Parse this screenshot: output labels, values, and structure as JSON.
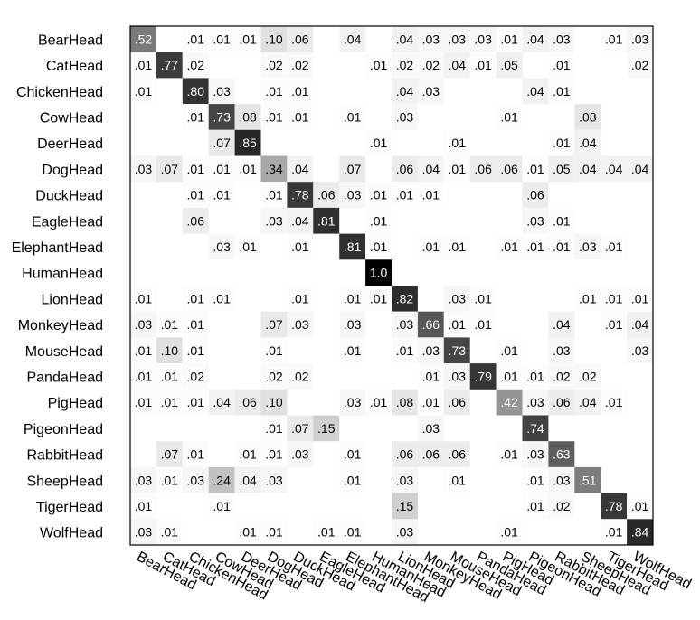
{
  "chart_data": {
    "type": "heatmap",
    "title": "",
    "xlabel": "",
    "ylabel": "",
    "row_labels": [
      "BearHead",
      "CatHead",
      "ChickenHead",
      "CowHead",
      "DeerHead",
      "DogHead",
      "DuckHead",
      "EagleHead",
      "ElephantHead",
      "HumanHead",
      "LionHead",
      "MonkeyHead",
      "MouseHead",
      "PandaHead",
      "PigHead",
      "PigeonHead",
      "RabbitHead",
      "SheepHead",
      "TigerHead",
      "WolfHead"
    ],
    "column_labels": [
      "BearHead",
      "CatHead",
      "ChickenHead",
      "CowHead",
      "DeerHead",
      "DogHead",
      "DuckHead",
      "EagleHead",
      "ElephantHead",
      "HumanHead",
      "LionHead",
      "MonkeyHead",
      "MouseHead",
      "PandaHead",
      "PigHead",
      "PigeonHead",
      "RabbitHead",
      "SheepHead",
      "TigerHead",
      "WolfHead"
    ],
    "cells": [
      [
        ".52",
        "",
        ".01",
        ".01",
        ".01",
        ".10",
        ".06",
        "",
        ".04",
        "",
        ".04",
        ".03",
        ".03",
        ".03",
        ".01",
        ".04",
        ".03",
        "",
        ".01",
        ".03"
      ],
      [
        ".01",
        ".77",
        ".02",
        "",
        "",
        ".02",
        ".02",
        "",
        "",
        ".01",
        ".02",
        ".02",
        ".04",
        ".01",
        ".05",
        "",
        ".01",
        "",
        "",
        ".02"
      ],
      [
        ".01",
        "",
        ".80",
        ".03",
        "",
        ".01",
        ".01",
        "",
        "",
        "",
        ".04",
        ".03",
        "",
        "",
        "",
        ".04",
        ".01",
        "",
        "",
        ""
      ],
      [
        "",
        "",
        ".01",
        ".73",
        ".08",
        ".01",
        ".01",
        "",
        ".01",
        "",
        ".03",
        "",
        "",
        "",
        ".01",
        "",
        "",
        ".08",
        "",
        ""
      ],
      [
        "",
        "",
        "",
        ".07",
        ".85",
        "",
        "",
        "",
        "",
        ".01",
        "",
        "",
        ".01",
        "",
        "",
        "",
        ".01",
        ".04",
        "",
        ""
      ],
      [
        ".03",
        ".07",
        ".01",
        ".01",
        ".01",
        ".34",
        ".04",
        "",
        ".07",
        "",
        ".06",
        ".04",
        ".01",
        ".06",
        ".06",
        ".01",
        ".05",
        ".04",
        ".04",
        ".04"
      ],
      [
        "",
        "",
        ".01",
        ".01",
        "",
        ".01",
        ".78",
        ".06",
        ".03",
        ".01",
        ".01",
        ".01",
        "",
        "",
        "",
        ".06",
        "",
        "",
        "",
        ""
      ],
      [
        "",
        "",
        ".06",
        "",
        "",
        ".03",
        ".04",
        ".81",
        "",
        ".01",
        "",
        "",
        "",
        "",
        "",
        ".03",
        ".01",
        "",
        "",
        ""
      ],
      [
        "",
        "",
        "",
        ".03",
        ".01",
        "",
        ".01",
        "",
        ".81",
        ".01",
        "",
        ".01",
        ".01",
        "",
        ".01",
        ".01",
        ".01",
        ".03",
        ".01",
        ""
      ],
      [
        "",
        "",
        "",
        "",
        "",
        "",
        "",
        "",
        "",
        "1.0",
        "",
        "",
        "",
        "",
        "",
        "",
        "",
        "",
        "",
        ""
      ],
      [
        ".01",
        "",
        ".01",
        ".01",
        "",
        "",
        ".01",
        "",
        ".01",
        ".01",
        ".82",
        "",
        ".03",
        ".01",
        "",
        "",
        "",
        ".01",
        ".01",
        ".01"
      ],
      [
        ".03",
        ".01",
        ".01",
        "",
        "",
        ".07",
        ".03",
        "",
        ".03",
        "",
        ".03",
        ".66",
        ".01",
        ".01",
        "",
        "",
        ".04",
        "",
        ".01",
        ".04"
      ],
      [
        ".01",
        ".10",
        ".01",
        "",
        "",
        ".01",
        "",
        "",
        ".01",
        "",
        ".01",
        ".03",
        ".73",
        "",
        ".01",
        "",
        ".03",
        "",
        "",
        ".03"
      ],
      [
        ".01",
        ".01",
        ".02",
        "",
        "",
        ".02",
        ".02",
        "",
        "",
        "",
        "",
        ".01",
        ".03",
        ".79",
        ".01",
        ".01",
        ".02",
        ".02",
        "",
        ""
      ],
      [
        ".01",
        ".01",
        ".01",
        ".04",
        ".06",
        ".10",
        "",
        "",
        ".03",
        ".01",
        ".08",
        ".01",
        ".06",
        "",
        ".42",
        ".03",
        ".06",
        ".04",
        ".01",
        ""
      ],
      [
        "",
        "",
        "",
        "",
        "",
        ".01",
        ".07",
        ".15",
        "",
        "",
        "",
        ".03",
        "",
        "",
        "",
        ".74",
        "",
        "",
        "",
        ""
      ],
      [
        "",
        ".07",
        ".01",
        "",
        ".01",
        ".01",
        ".03",
        "",
        ".01",
        "",
        ".06",
        ".06",
        ".06",
        "",
        ".01",
        ".03",
        ".63",
        "",
        "",
        ""
      ],
      [
        ".03",
        ".01",
        ".03",
        ".24",
        ".04",
        ".03",
        "",
        "",
        ".01",
        "",
        ".03",
        "",
        ".01",
        "",
        "",
        ".01",
        ".03",
        ".51",
        "",
        ""
      ],
      [
        ".01",
        "",
        "",
        ".01",
        "",
        "",
        "",
        "",
        "",
        "",
        ".15",
        "",
        "",
        "",
        "",
        ".01",
        ".02",
        "",
        ".78",
        ".01"
      ],
      [
        ".03",
        ".01",
        "",
        "",
        ".01",
        ".01",
        "",
        ".01",
        ".01",
        "",
        ".03",
        "",
        "",
        "",
        ".01",
        "",
        "",
        "",
        ".01",
        ".84"
      ]
    ],
    "colormap": "white-to-black by value",
    "grid": false,
    "legend": "none"
  }
}
